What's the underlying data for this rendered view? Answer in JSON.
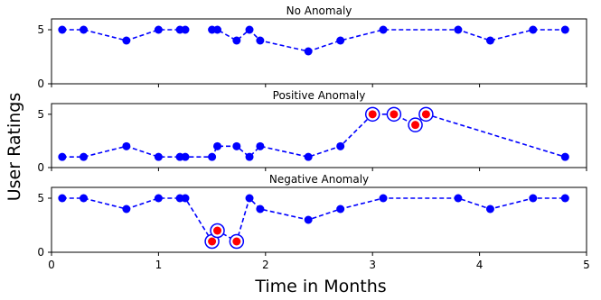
{
  "chart_data": {
    "type": "line",
    "xlabel": "Time in Months",
    "ylabel": "User Ratings",
    "xlim": [
      0,
      5
    ],
    "xticks": [
      "0",
      "1",
      "2",
      "3",
      "4",
      "5"
    ],
    "grid": false,
    "colors": {
      "line": "#0000ff",
      "anomaly": "#ff0000",
      "ring": "#0000ff"
    },
    "panels": [
      {
        "title": "No Anomaly",
        "ylim": [
          0,
          6
        ],
        "yticks": [
          "0",
          "5"
        ],
        "x": [
          0.1,
          0.3,
          0.7,
          1.0,
          1.2,
          1.25,
          1.5,
          1.55,
          1.73,
          1.85,
          1.95,
          2.4,
          2.7,
          3.1,
          3.8,
          4.1,
          4.5,
          4.8
        ],
        "y": [
          5,
          5,
          4,
          5,
          5,
          5,
          5,
          5,
          4,
          5,
          4,
          3,
          4,
          5,
          5,
          4,
          5,
          5
        ],
        "gap_after_index": 5,
        "anomalies": []
      },
      {
        "title": "Positive Anomaly",
        "ylim": [
          0,
          6
        ],
        "yticks": [
          "0",
          "5"
        ],
        "x": [
          0.1,
          0.3,
          0.7,
          1.0,
          1.2,
          1.25,
          1.5,
          1.55,
          1.73,
          1.85,
          1.95,
          2.4,
          2.7,
          3.0,
          3.2,
          3.4,
          3.5,
          4.8
        ],
        "y": [
          1,
          1,
          2,
          1,
          1,
          1,
          1,
          2,
          2,
          1,
          2,
          1,
          2,
          5,
          5,
          4,
          5,
          1
        ],
        "gap_after_index": -1,
        "anomalies": [
          13,
          14,
          15,
          16
        ]
      },
      {
        "title": "Negative Anomaly",
        "ylim": [
          0,
          6
        ],
        "yticks": [
          "0",
          "5"
        ],
        "x": [
          0.1,
          0.3,
          0.7,
          1.0,
          1.2,
          1.25,
          1.5,
          1.55,
          1.73,
          1.85,
          1.95,
          2.4,
          2.7,
          3.1,
          3.8,
          4.1,
          4.5,
          4.8
        ],
        "y": [
          5,
          5,
          4,
          5,
          5,
          5,
          1,
          2,
          1,
          5,
          4,
          3,
          4,
          5,
          5,
          4,
          5,
          5
        ],
        "gap_after_index": -1,
        "anomalies": [
          6,
          7,
          8
        ]
      }
    ]
  }
}
